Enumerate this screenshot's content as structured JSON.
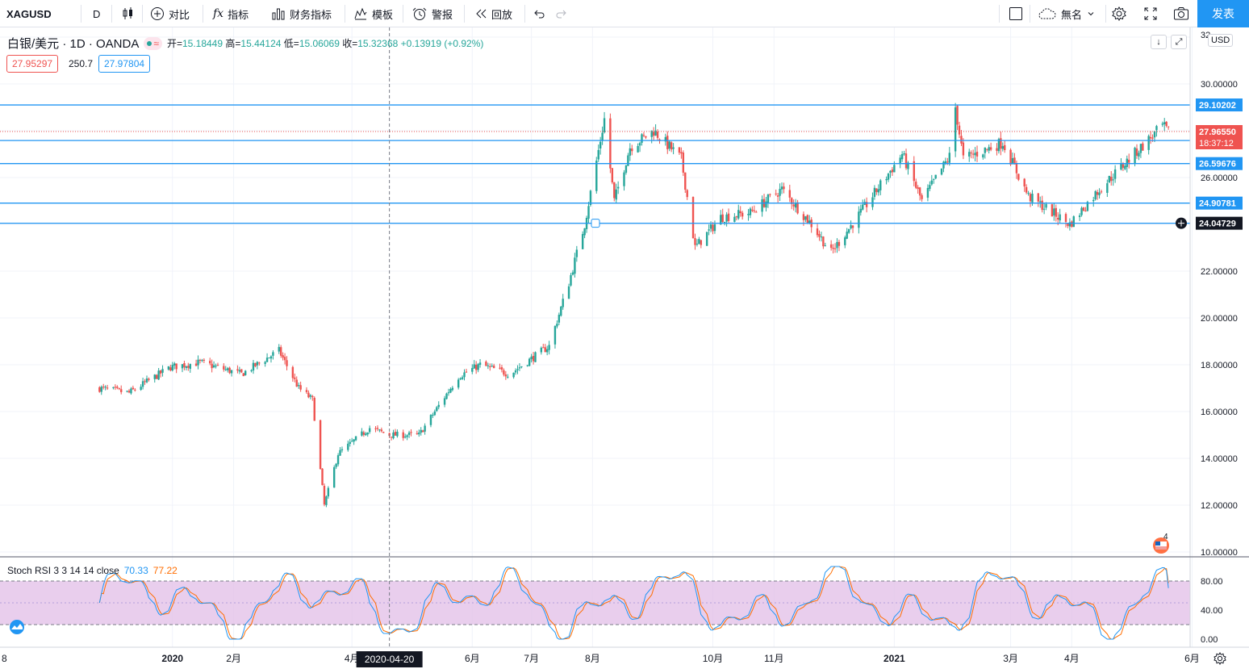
{
  "toolbar": {
    "symbol": "XAGUSD",
    "interval": "D",
    "compare_label": "对比",
    "indicators_label": "指标",
    "financials_label": "财务指标",
    "templates_label": "模板",
    "alert_label": "警报",
    "replay_label": "回放",
    "layout_name": "無名",
    "publish_label": "发表"
  },
  "legend": {
    "symbol_title": "白银/美元 · 1D · OANDA",
    "open_label": "开=",
    "open": "15.18449",
    "high_label": "高=",
    "high": "15.44124",
    "low_label": "低=",
    "low": "15.06069",
    "close_label": "收=",
    "close": "15.32368",
    "change": "+0.13919 (+0.92%)",
    "bid": "27.95297",
    "spread": "250.7",
    "ask": "27.97804"
  },
  "currency": "USD",
  "stoch": {
    "name": "Stoch RSI 3 3 14 14 close",
    "k": "70.33",
    "d": "77.22"
  },
  "crosshair_date": "2020-04-20",
  "last_price_countdown": "18:37:12",
  "colors": {
    "up": "#26a69a",
    "down": "#ef5350",
    "hline": "#2196f3",
    "k_line": "#2196f3",
    "d_line": "#ff6d00",
    "band": "#e1bee7",
    "accent": "#2196f3"
  },
  "chart_data": {
    "type": "candlestick",
    "instrument": "XAGUSD",
    "ylim": [
      10,
      32
    ],
    "y_ticks": [
      "32",
      "30.00000",
      "28.00000",
      "26.00000",
      "24.00000",
      "22.00000",
      "20.00000",
      "18.00000",
      "16.00000",
      "14.00000",
      "12.00000",
      "10.00000"
    ],
    "x_ticks": [
      "8",
      "2020",
      "2月",
      "4月",
      "6月",
      "7月",
      "8月",
      "10月",
      "11月",
      "2021",
      "3月",
      "4月",
      "6月"
    ],
    "anchors": [
      [
        "2019-11-25",
        17.0
      ],
      [
        "2019-12-10",
        16.8
      ],
      [
        "2019-12-31",
        17.9
      ],
      [
        "2020-01-15",
        18.1
      ],
      [
        "2020-02-05",
        17.6
      ],
      [
        "2020-02-24",
        18.6
      ],
      [
        "2020-03-05",
        17.0
      ],
      [
        "2020-03-12",
        16.5
      ],
      [
        "2020-03-18",
        12.0
      ],
      [
        "2020-03-25",
        14.2
      ],
      [
        "2020-04-10",
        15.3
      ],
      [
        "2020-04-20",
        15.0
      ],
      [
        "2020-05-05",
        15.0
      ],
      [
        "2020-05-25",
        17.5
      ],
      [
        "2020-06-05",
        18.0
      ],
      [
        "2020-06-20",
        17.6
      ],
      [
        "2020-07-10",
        18.8
      ],
      [
        "2020-07-20",
        21.5
      ],
      [
        "2020-07-28",
        24.0
      ],
      [
        "2020-08-07",
        28.5
      ],
      [
        "2020-08-12",
        25.0
      ],
      [
        "2020-08-20",
        27.3
      ],
      [
        "2020-09-01",
        28.0
      ],
      [
        "2020-09-15",
        26.8
      ],
      [
        "2020-09-22",
        23.0
      ],
      [
        "2020-10-05",
        24.3
      ],
      [
        "2020-10-20",
        24.5
      ],
      [
        "2020-11-05",
        25.5
      ],
      [
        "2020-11-20",
        24.0
      ],
      [
        "2020-11-30",
        22.8
      ],
      [
        "2020-12-15",
        24.5
      ],
      [
        "2021-01-05",
        27.0
      ],
      [
        "2021-01-15",
        25.0
      ],
      [
        "2021-01-29",
        26.9
      ],
      [
        "2021-02-01",
        29.0
      ],
      [
        "2021-02-05",
        26.8
      ],
      [
        "2021-02-25",
        27.5
      ],
      [
        "2021-03-10",
        25.2
      ],
      [
        "2021-03-31",
        24.0
      ],
      [
        "2021-04-15",
        25.5
      ],
      [
        "2021-05-05",
        27.2
      ],
      [
        "2021-05-17",
        28.2
      ],
      [
        "2021-05-20",
        27.95
      ]
    ],
    "horizontal_levels": [
      "29.10202",
      "27.58197",
      "26.59676",
      "24.90781",
      "24.04729"
    ],
    "last_price": "27.96550",
    "stoch_rsi": {
      "ylim": [
        0,
        100
      ],
      "y_ticks": [
        "80.00",
        "40.00",
        "0.00"
      ],
      "bands": [
        20,
        80
      ],
      "k": 70.33,
      "d": 77.22
    }
  }
}
